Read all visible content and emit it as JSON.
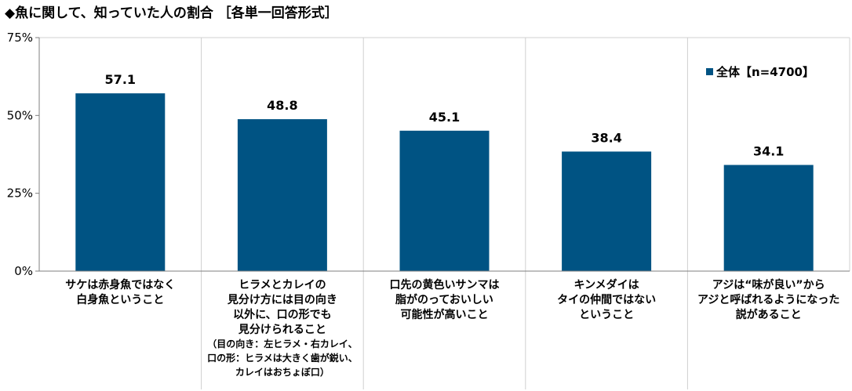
{
  "title": "◆魚に関して、知っていた人の割合 ［各単一回答形式］",
  "legend": {
    "label": "全体【n=4700】"
  },
  "colors": {
    "bar": "#005383",
    "grid": "#d0d0d0",
    "axis": "#7f7f7f"
  },
  "chart_data": {
    "type": "bar",
    "title": "◆魚に関して、知っていた人の割合 ［各単一回答形式］",
    "ylim": [
      0,
      75
    ],
    "yticks": [
      0,
      25,
      50,
      75
    ],
    "ytick_labels": [
      "0%",
      "25%",
      "50%",
      "75%"
    ],
    "grid": "vertical separators between categories",
    "legend_position": "top-right",
    "categories": [
      {
        "lines": [
          "サケは赤身魚ではなく",
          "白身魚ということ"
        ],
        "sub": []
      },
      {
        "lines": [
          "ヒラメとカレイの",
          "見分け方には目の向き",
          "以外に、口の形でも",
          "見分けられること"
        ],
        "sub": [
          "（目の向き：左ヒラメ・右カレイ、",
          "口の形：ヒラメは大きく歯が鋭い、",
          "カレイはおちょぼ口）"
        ]
      },
      {
        "lines": [
          "口先の黄色いサンマは",
          "脂がのっておいしい",
          "可能性が高いこと"
        ],
        "sub": []
      },
      {
        "lines": [
          "キンメダイは",
          "タイの仲間ではない",
          "ということ"
        ],
        "sub": []
      },
      {
        "lines": [
          "アジは“味が良い”から",
          "アジと呼ばれるようになった",
          "説があること"
        ],
        "sub": []
      }
    ],
    "series": [
      {
        "name": "全体【n=4700】",
        "values": [
          57.1,
          48.8,
          45.1,
          38.4,
          34.1
        ],
        "labels": [
          "57.1",
          "48.8",
          "45.1",
          "38.4",
          "34.1"
        ]
      }
    ]
  }
}
